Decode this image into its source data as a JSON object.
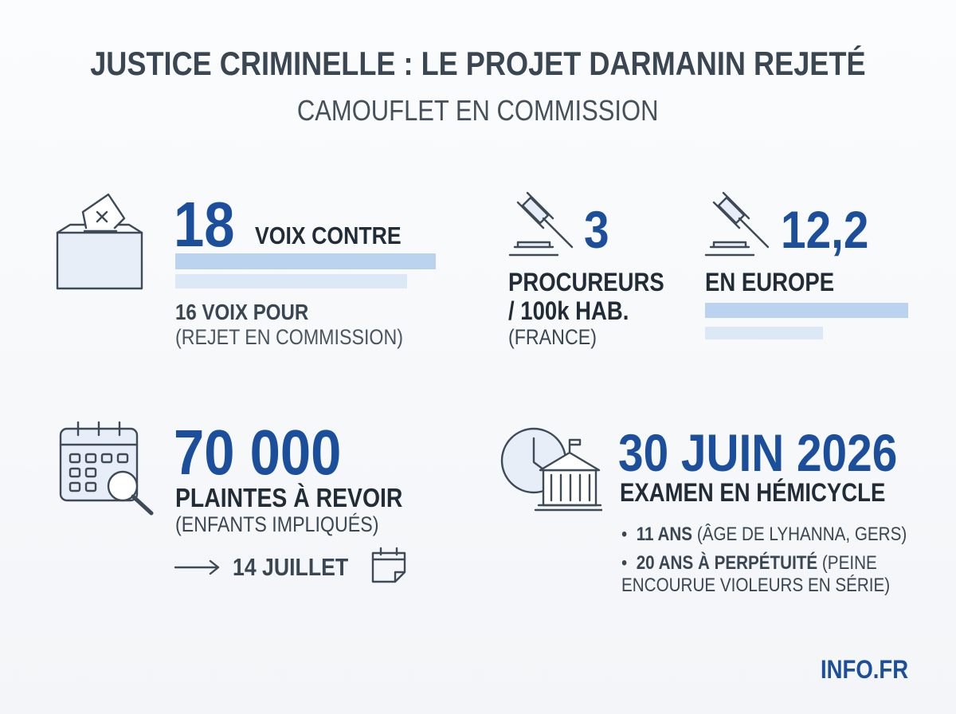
{
  "header": {
    "title": "JUSTICE CRIMINELLE : LE PROJET DARMANIN REJETÉ",
    "subtitle": "CAMOUFLET EN COMMISSION"
  },
  "votes": {
    "against_value": 18,
    "against_label": "VOIX CONTRE",
    "for_value": 16,
    "for_label": "VOIX POUR",
    "note": "(REJET EN COMMISSION)"
  },
  "prosecutors": {
    "france_value": "3",
    "france_label_line1": "PROCUREURS",
    "france_label_line2": "/ 100k HAB.",
    "france_note": "(FRANCE)",
    "europe_value": "12,2",
    "europe_label": "EN EUROPE"
  },
  "complaints": {
    "value": "70 000",
    "label": "PLAINTES À REVOIR",
    "note": "(ENFANTS IMPLIQUÉS)",
    "deadline": "14 JUILLET"
  },
  "hemicycle": {
    "date": "30 JUIN 2026",
    "label": "EXAMEN EN HÉMICYCLE",
    "bullets": [
      {
        "bold": "11 ANS",
        "text": "(ÂGE DE LYHANNA, GERS)"
      },
      {
        "bold": "20 ANS À PERPÉTUITÉ",
        "text": "(PEINE ENCOURUE VIOLEURS EN SÉRIE)"
      }
    ]
  },
  "footer": {
    "brand": "INFO.FR"
  }
}
